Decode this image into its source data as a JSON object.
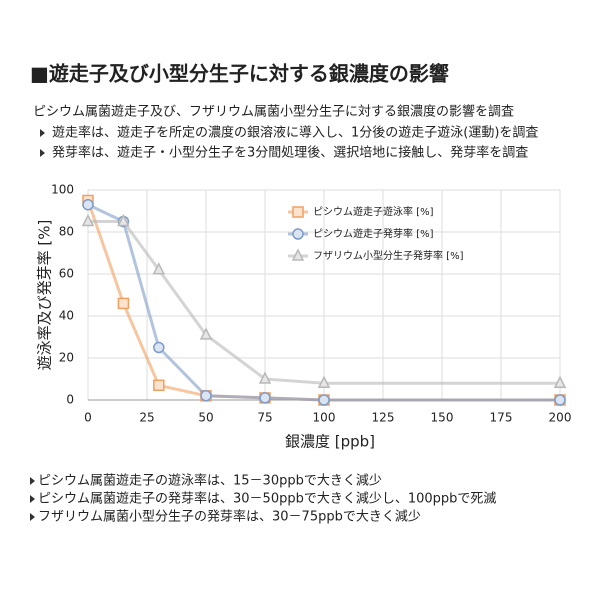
{
  "slide": {
    "title": "■遊走子及び小型分生子に対する銀濃度の影響",
    "intro": "ピシウム属菌遊走子及び、フザリウム属菌小型分生子に対する銀濃度の影響を調査",
    "bullets": [
      "遊走率は、遊走子を所定の濃度の銀溶液に導入し、1分後の遊走子遊泳(運動)を調査",
      "発芽率は、遊走子・小型分生子を3分間処理後、選択培地に接触し、発芽率を調査"
    ],
    "notes": [
      "ピシウム属菌遊走子の遊泳率は、15－30ppbで大きく減少",
      "ピシウム属菌遊走子の発芽率は、30－50ppbで大きく減少し、100ppbで死滅",
      "フザリウム属菌小型分生子の発芽率は、30－75ppbで大きく減少"
    ]
  },
  "chart_data": {
    "type": "line",
    "x_label": "銀濃度 [ppb]",
    "y_label": "遊泳率及び発芽率 [%]",
    "x": [
      0,
      15,
      30,
      50,
      75,
      100,
      200
    ],
    "xlim": [
      0,
      200
    ],
    "xticks": [
      0,
      25,
      50,
      75,
      100,
      125,
      150,
      175,
      200
    ],
    "ylim": [
      0,
      100
    ],
    "yticks": [
      0,
      20,
      40,
      60,
      80,
      100
    ],
    "grid": true,
    "series": [
      {
        "name": "ピシウム遊走子遊泳率 [%]",
        "color": "#f0a060",
        "marker": "square",
        "values": [
          95,
          46,
          7,
          2,
          1,
          0,
          0
        ]
      },
      {
        "name": "ピシウム遊走子発芽率 [%]",
        "color": "#7f9cc8",
        "marker": "circle",
        "values": [
          93,
          85,
          25,
          2,
          1,
          0,
          0
        ]
      },
      {
        "name": "フザリウム小型分生子発芽率 [%]",
        "color": "#b8b8b8",
        "marker": "triangle",
        "values": [
          85,
          85,
          62,
          31,
          10,
          8,
          8
        ]
      }
    ]
  }
}
